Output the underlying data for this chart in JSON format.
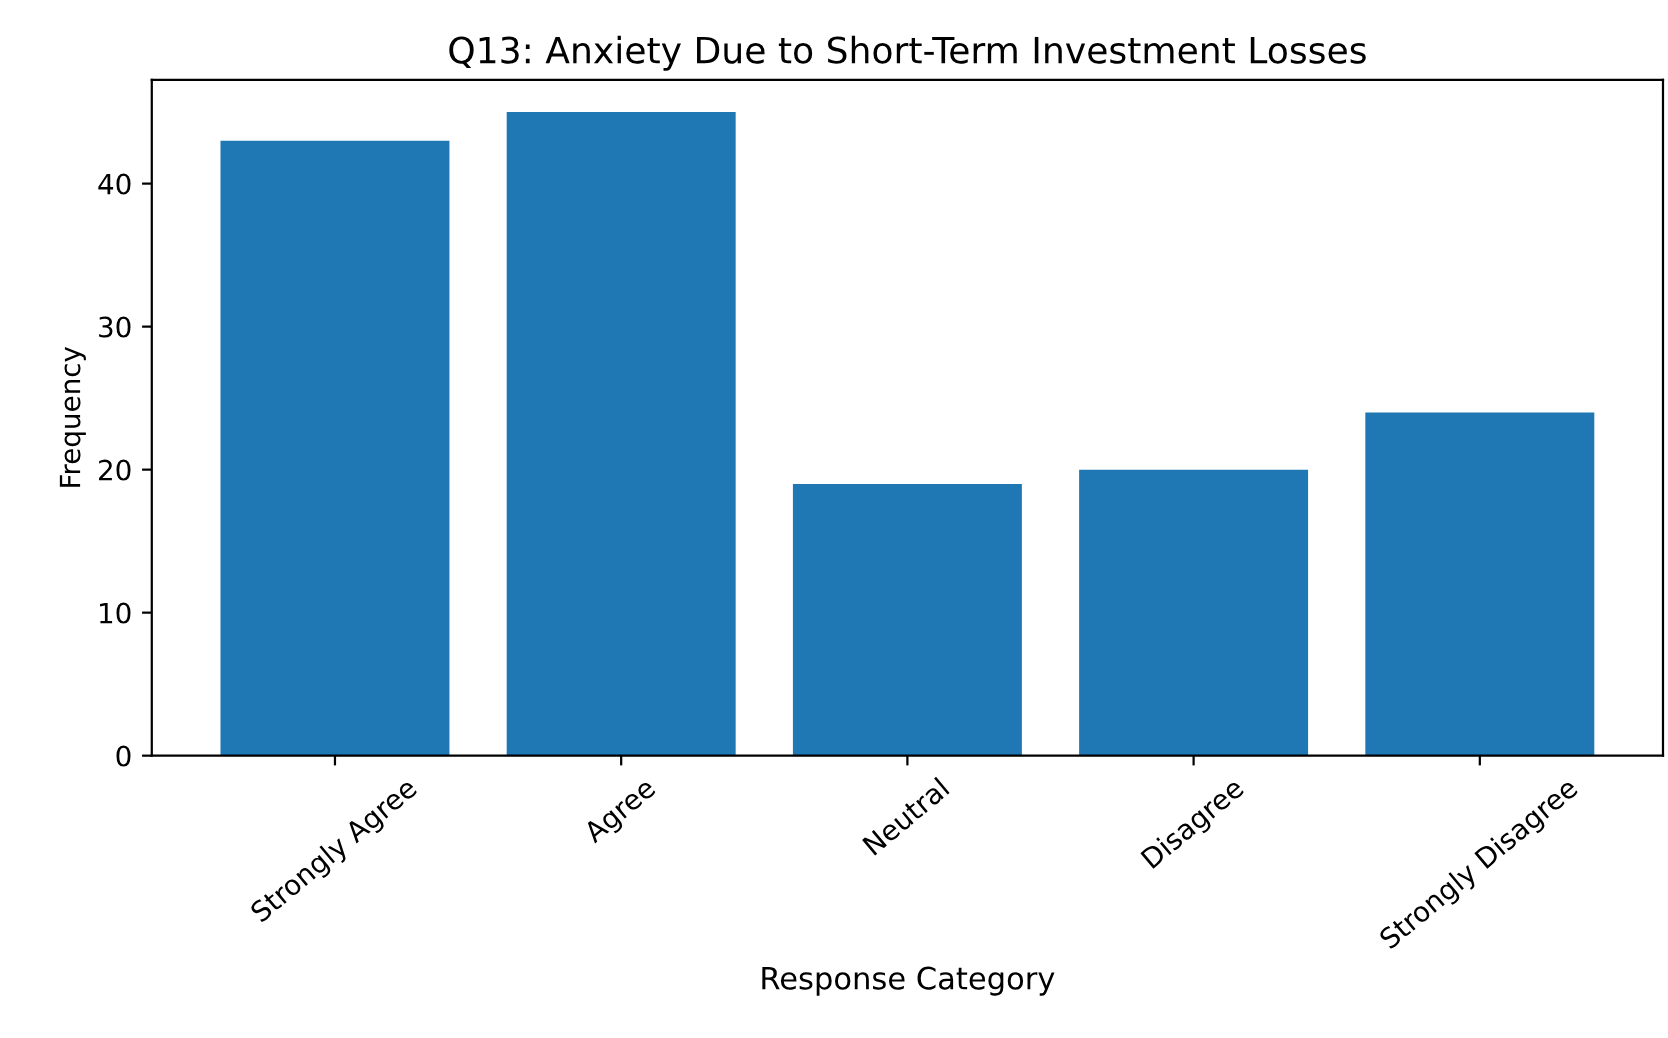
{
  "chart_data": {
    "type": "bar",
    "title": "Q13: Anxiety Due to Short-Term Investment Losses",
    "xlabel": "Response Category",
    "ylabel": "Frequency",
    "categories": [
      "Strongly Agree",
      "Agree",
      "Neutral",
      "Disagree",
      "Strongly Disagree"
    ],
    "values": [
      43,
      45,
      19,
      20,
      24
    ],
    "color": "#1f77b4",
    "ylim": [
      0,
      47.25
    ],
    "yticks": [
      0,
      10,
      20,
      30,
      40
    ],
    "grid": false,
    "legend": false
  }
}
